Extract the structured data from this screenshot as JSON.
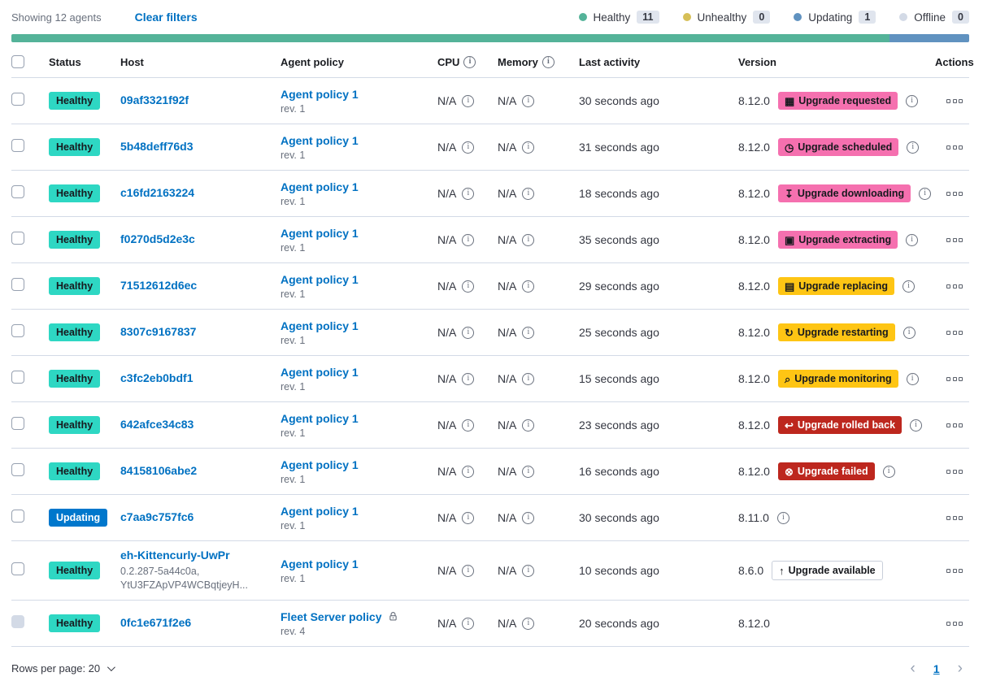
{
  "colors": {
    "healthy": "#2ED7C3",
    "updating": "#0077CC",
    "pink": "#F570AF",
    "yellow": "#FEC514",
    "red": "#BD271E",
    "bar_green": "#54B399",
    "bar_blue": "#6092C0"
  },
  "icons": {
    "info-icon": "i",
    "calendar-icon": "▦",
    "clock-icon": "◷",
    "download-icon": "↧",
    "package-icon": "▣",
    "document-icon": "▤",
    "refresh-icon": "↻",
    "inspect-icon": "⌕",
    "return-icon": "↩",
    "error-icon": "⊗",
    "arrow-up-icon": "↑",
    "prev-icon": "‹",
    "next-icon": "›"
  },
  "header": {
    "showing_text": "Showing 12 agents",
    "clear_filters": "Clear filters",
    "legend": [
      {
        "label": "Healthy",
        "count": "11",
        "color": "#54B399"
      },
      {
        "label": "Unhealthy",
        "count": "0",
        "color": "#D6BF57"
      },
      {
        "label": "Updating",
        "count": "1",
        "color": "#6092C0"
      },
      {
        "label": "Offline",
        "count": "0",
        "color": "#D3DAE6"
      }
    ],
    "health_bar": [
      {
        "color": "#54B399",
        "fraction": 0.917
      },
      {
        "color": "#6092C0",
        "fraction": 0.083
      }
    ]
  },
  "table": {
    "columns": [
      "Status",
      "Host",
      "Agent policy",
      "CPU",
      "Memory",
      "Last activity",
      "Version",
      "Actions"
    ],
    "rows": [
      {
        "status": "Healthy",
        "status_type": "healthy",
        "host": "09af3321f92f",
        "host_sub": [],
        "policy": "Agent policy 1",
        "policy_rev": "rev. 1",
        "policy_lock": false,
        "cpu": "N/A",
        "memory": "N/A",
        "last_activity": "30 seconds ago",
        "version": "8.12.0",
        "badge": {
          "label": "Upgrade requested",
          "type": "pink",
          "icon": "calendar-icon"
        },
        "version_info": true,
        "checkbox_disabled": false,
        "tall": false
      },
      {
        "status": "Healthy",
        "status_type": "healthy",
        "host": "5b48deff76d3",
        "host_sub": [],
        "policy": "Agent policy 1",
        "policy_rev": "rev. 1",
        "policy_lock": false,
        "cpu": "N/A",
        "memory": "N/A",
        "last_activity": "31 seconds ago",
        "version": "8.12.0",
        "badge": {
          "label": "Upgrade scheduled",
          "type": "pink",
          "icon": "clock-icon"
        },
        "version_info": true,
        "checkbox_disabled": false,
        "tall": false
      },
      {
        "status": "Healthy",
        "status_type": "healthy",
        "host": "c16fd2163224",
        "host_sub": [],
        "policy": "Agent policy 1",
        "policy_rev": "rev. 1",
        "policy_lock": false,
        "cpu": "N/A",
        "memory": "N/A",
        "last_activity": "18 seconds ago",
        "version": "8.12.0",
        "badge": {
          "label": "Upgrade downloading",
          "type": "pink",
          "icon": "download-icon"
        },
        "version_info": true,
        "checkbox_disabled": false,
        "tall": false
      },
      {
        "status": "Healthy",
        "status_type": "healthy",
        "host": "f0270d5d2e3c",
        "host_sub": [],
        "policy": "Agent policy 1",
        "policy_rev": "rev. 1",
        "policy_lock": false,
        "cpu": "N/A",
        "memory": "N/A",
        "last_activity": "35 seconds ago",
        "version": "8.12.0",
        "badge": {
          "label": "Upgrade extracting",
          "type": "pink",
          "icon": "package-icon"
        },
        "version_info": true,
        "checkbox_disabled": false,
        "tall": false
      },
      {
        "status": "Healthy",
        "status_type": "healthy",
        "host": "71512612d6ec",
        "host_sub": [],
        "policy": "Agent policy 1",
        "policy_rev": "rev. 1",
        "policy_lock": false,
        "cpu": "N/A",
        "memory": "N/A",
        "last_activity": "29 seconds ago",
        "version": "8.12.0",
        "badge": {
          "label": "Upgrade replacing",
          "type": "yellow",
          "icon": "document-icon"
        },
        "version_info": true,
        "checkbox_disabled": false,
        "tall": false
      },
      {
        "status": "Healthy",
        "status_type": "healthy",
        "host": "8307c9167837",
        "host_sub": [],
        "policy": "Agent policy 1",
        "policy_rev": "rev. 1",
        "policy_lock": false,
        "cpu": "N/A",
        "memory": "N/A",
        "last_activity": "25 seconds ago",
        "version": "8.12.0",
        "badge": {
          "label": "Upgrade restarting",
          "type": "yellow",
          "icon": "refresh-icon"
        },
        "version_info": true,
        "checkbox_disabled": false,
        "tall": false
      },
      {
        "status": "Healthy",
        "status_type": "healthy",
        "host": "c3fc2eb0bdf1",
        "host_sub": [],
        "policy": "Agent policy 1",
        "policy_rev": "rev. 1",
        "policy_lock": false,
        "cpu": "N/A",
        "memory": "N/A",
        "last_activity": "15 seconds ago",
        "version": "8.12.0",
        "badge": {
          "label": "Upgrade monitoring",
          "type": "yellow",
          "icon": "inspect-icon"
        },
        "version_info": true,
        "checkbox_disabled": false,
        "tall": false
      },
      {
        "status": "Healthy",
        "status_type": "healthy",
        "host": "642afce34c83",
        "host_sub": [],
        "policy": "Agent policy 1",
        "policy_rev": "rev. 1",
        "policy_lock": false,
        "cpu": "N/A",
        "memory": "N/A",
        "last_activity": "23 seconds ago",
        "version": "8.12.0",
        "badge": {
          "label": "Upgrade rolled back",
          "type": "red",
          "icon": "return-icon"
        },
        "version_info": true,
        "checkbox_disabled": false,
        "tall": false
      },
      {
        "status": "Healthy",
        "status_type": "healthy",
        "host": "84158106abe2",
        "host_sub": [],
        "policy": "Agent policy 1",
        "policy_rev": "rev. 1",
        "policy_lock": false,
        "cpu": "N/A",
        "memory": "N/A",
        "last_activity": "16 seconds ago",
        "version": "8.12.0",
        "badge": {
          "label": "Upgrade failed",
          "type": "red",
          "icon": "error-icon"
        },
        "version_info": true,
        "checkbox_disabled": false,
        "tall": false
      },
      {
        "status": "Updating",
        "status_type": "updating",
        "host": "c7aa9c757fc6",
        "host_sub": [],
        "policy": "Agent policy 1",
        "policy_rev": "rev. 1",
        "policy_lock": false,
        "cpu": "N/A",
        "memory": "N/A",
        "last_activity": "30 seconds ago",
        "version": "8.11.0",
        "badge": null,
        "version_info": true,
        "checkbox_disabled": false,
        "tall": false
      },
      {
        "status": "Healthy",
        "status_type": "healthy",
        "host": "eh-Kittencurly-UwPr",
        "host_sub": [
          "0.2.287-5a44c0a,",
          "YtU3FZApVP4WCBqtjeyH..."
        ],
        "policy": "Agent policy 1",
        "policy_rev": "rev. 1",
        "policy_lock": false,
        "cpu": "N/A",
        "memory": "N/A",
        "last_activity": "10 seconds ago",
        "version": "8.6.0",
        "badge": {
          "label": "Upgrade available",
          "type": "outline",
          "icon": "arrow-up-icon"
        },
        "version_info": false,
        "checkbox_disabled": false,
        "tall": true
      },
      {
        "status": "Healthy",
        "status_type": "healthy",
        "host": "0fc1e671f2e6",
        "host_sub": [],
        "policy": "Fleet Server policy",
        "policy_rev": "rev. 4",
        "policy_lock": true,
        "cpu": "N/A",
        "memory": "N/A",
        "last_activity": "20 seconds ago",
        "version": "8.12.0",
        "badge": null,
        "version_info": false,
        "checkbox_disabled": true,
        "tall": false
      }
    ]
  },
  "footer": {
    "rows_per_page": "Rows per page: 20",
    "page": "1"
  }
}
